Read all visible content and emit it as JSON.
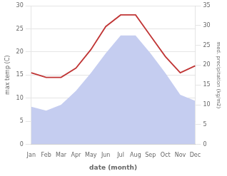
{
  "chart_data": {
    "type": "line",
    "xlabel": "date (month)",
    "ylabel": "max temp (C)",
    "y2label": "med. precipitation (kg/m2)",
    "categories": [
      "Jan",
      "Feb",
      "Mar",
      "Apr",
      "May",
      "Jun",
      "Jul",
      "Aug",
      "Sep",
      "Oct",
      "Nov",
      "Dec"
    ],
    "series": [
      {
        "type": "line",
        "color": "#c03535",
        "values": [
          15.5,
          14.5,
          14.5,
          16.5,
          20.5,
          25.5,
          28.0,
          28.0,
          23.5,
          19.0,
          15.5,
          17.0
        ]
      },
      {
        "type": "area",
        "axis": "y2",
        "color": "#c5cdf0",
        "values": [
          9.5,
          8.5,
          10.0,
          13.5,
          18.0,
          23.0,
          27.5,
          27.5,
          23.0,
          18.0,
          12.5,
          11.0
        ]
      }
    ],
    "ylim": [
      0,
      30
    ],
    "yticks": [
      0,
      5,
      10,
      15,
      20,
      25,
      30
    ],
    "y2lim": [
      0,
      35
    ],
    "y2ticks": [
      0,
      5,
      10,
      15,
      20,
      25,
      30,
      35
    ],
    "grid": true
  }
}
